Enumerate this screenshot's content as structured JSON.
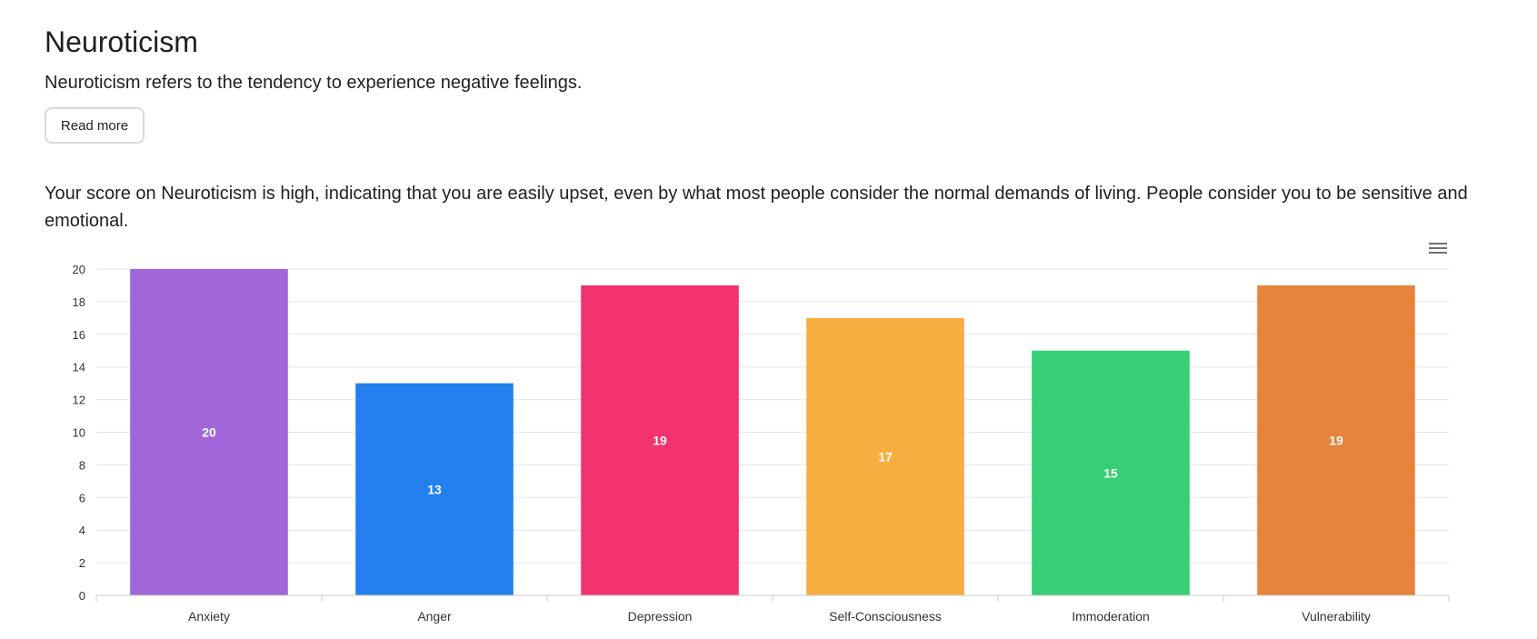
{
  "header": {
    "title": "Neuroticism",
    "intro": "Neuroticism refers to the tendency to experience negative feelings.",
    "read_more_label": "Read more"
  },
  "score_text": "Your score on Neuroticism is high, indicating that you are easily upset, even by what most people consider the normal demands of living. People consider you to be sensitive and emotional.",
  "chart_menu": {
    "icon": "hamburger-menu-icon"
  },
  "chart_data": {
    "type": "bar",
    "categories": [
      "Anxiety",
      "Anger",
      "Depression",
      "Self-Consciousness",
      "Immoderation",
      "Vulnerability"
    ],
    "values": [
      20,
      13,
      19,
      17,
      15,
      19
    ],
    "colors": [
      "#a066d9",
      "#2280ef",
      "#f3336f",
      "#f6ae40",
      "#36cf75",
      "#e7833b"
    ],
    "ylim": [
      0,
      20
    ],
    "yticks": [
      0,
      2,
      4,
      6,
      8,
      10,
      12,
      14,
      16,
      18,
      20
    ],
    "grid": true,
    "data_labels": true,
    "legend": "none"
  }
}
